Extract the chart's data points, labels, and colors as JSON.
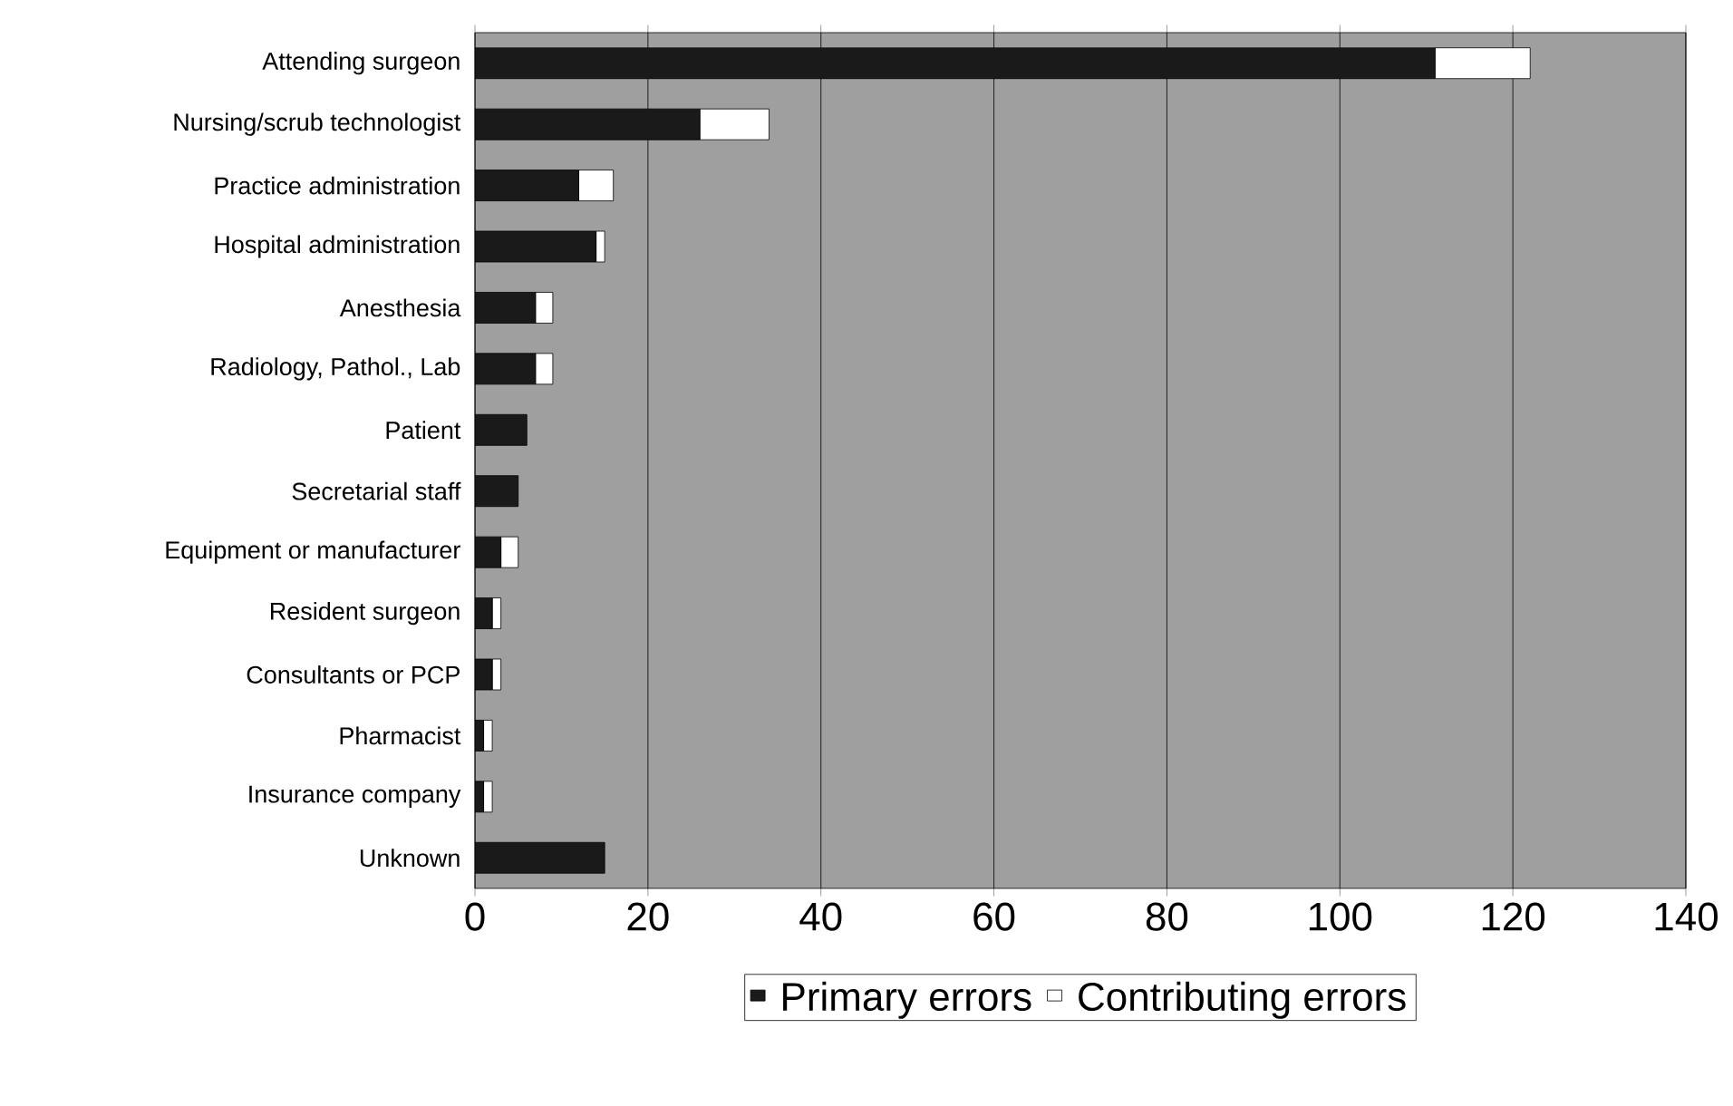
{
  "chart_data": {
    "type": "bar",
    "orientation": "horizontal",
    "stacked": true,
    "categories": [
      "Attending surgeon",
      "Nursing/scrub technologist",
      "Practice administration",
      "Hospital administration",
      "Anesthesia",
      "Radiology, Pathol., Lab",
      "Patient",
      "Secretarial staff",
      "Equipment or manufacturer",
      "Resident surgeon",
      "Consultants or PCP",
      "Pharmacist",
      "Insurance company",
      "Unknown"
    ],
    "series": [
      {
        "name": "Primary errors",
        "color": "#1a1a1a",
        "values": [
          111,
          26,
          12,
          14,
          7,
          7,
          6,
          5,
          3,
          2,
          2,
          1,
          1,
          15
        ]
      },
      {
        "name": "Contributing errors",
        "color": "#ffffff",
        "values": [
          11,
          8,
          4,
          1,
          2,
          2,
          0,
          0,
          2,
          1,
          1,
          1,
          1,
          0
        ]
      }
    ],
    "xlim": [
      0,
      140
    ],
    "xticks": [
      0,
      20,
      40,
      60,
      80,
      100,
      120,
      140
    ],
    "grid": "x",
    "legend": "bottom"
  }
}
